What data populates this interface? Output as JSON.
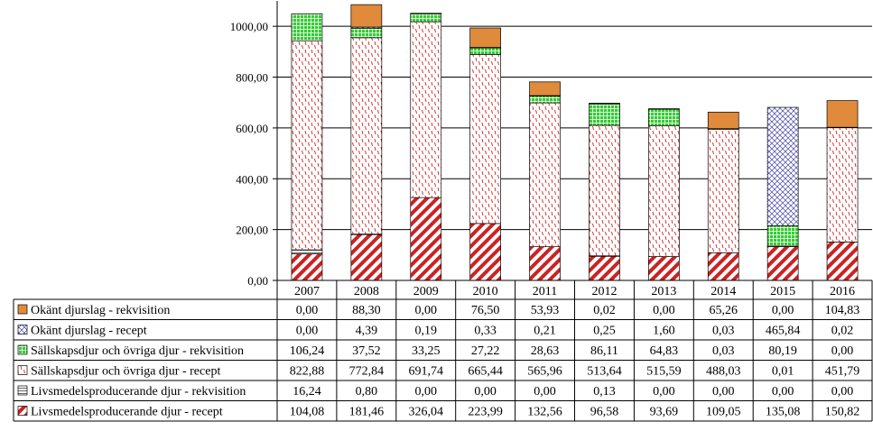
{
  "chart_data": {
    "type": "bar",
    "stacked": true,
    "categories": [
      "2007",
      "2008",
      "2009",
      "2010",
      "2011",
      "2012",
      "2013",
      "2014",
      "2015",
      "2016"
    ],
    "ylim": [
      0,
      1100
    ],
    "yticks": [
      0,
      200,
      400,
      600,
      800,
      1000
    ],
    "ytick_labels": [
      "0,00",
      "200,00",
      "400,00",
      "600,00",
      "800,00",
      "1000,00"
    ],
    "grid": true,
    "legend_position": "table-left",
    "series": [
      {
        "name": "Livsmedelsproducerande djur - recept",
        "color": "#cc2222",
        "pattern": "diag-red",
        "values": [
          104.08,
          181.46,
          326.04,
          223.99,
          132.56,
          96.58,
          93.69,
          109.05,
          135.08,
          150.82
        ],
        "labels": [
          "104,08",
          "181,46",
          "326,04",
          "223,99",
          "132,56",
          "96,58",
          "93,69",
          "109,05",
          "135,08",
          "150,82"
        ]
      },
      {
        "name": "Livsmedelsproducerande djur - rekvisition",
        "color": "#ffffff",
        "pattern": "hlines",
        "values": [
          16.24,
          0.8,
          0.0,
          0.0,
          0.0,
          0.13,
          0.0,
          0.0,
          0.0,
          0.0
        ],
        "labels": [
          "16,24",
          "0,80",
          "0,00",
          "0,00",
          "0,00",
          "0,13",
          "0,00",
          "0,00",
          "0,00",
          "0,00"
        ]
      },
      {
        "name": "Sällskapsdjur och övriga djur - recept",
        "color": "#cc2222",
        "pattern": "dash-red",
        "values": [
          822.88,
          772.84,
          691.74,
          665.44,
          565.96,
          513.64,
          515.59,
          488.03,
          0.01,
          451.79
        ],
        "labels": [
          "822,88",
          "772,84",
          "691,74",
          "665,44",
          "565,96",
          "513,64",
          "515,59",
          "488,03",
          "0,01",
          "451,79"
        ]
      },
      {
        "name": "Sällskapsdjur och övriga djur - rekvisition",
        "color": "#33bb33",
        "pattern": "grid-green",
        "values": [
          106.24,
          37.52,
          33.25,
          27.22,
          28.63,
          86.11,
          64.83,
          0.03,
          80.19,
          0.0
        ],
        "labels": [
          "106,24",
          "37,52",
          "33,25",
          "27,22",
          "28,63",
          "86,11",
          "64,83",
          "0,03",
          "80,19",
          "0,00"
        ]
      },
      {
        "name": "Okänt djurslag - recept",
        "color": "#4444aa",
        "pattern": "cross-blue",
        "values": [
          0.0,
          4.39,
          0.19,
          0.33,
          0.21,
          0.25,
          1.6,
          0.03,
          465.84,
          0.02
        ],
        "labels": [
          "0,00",
          "4,39",
          "0,19",
          "0,33",
          "0,21",
          "0,25",
          "1,60",
          "0,03",
          "465,84",
          "0,02"
        ]
      },
      {
        "name": "Okänt djurslag - rekvisition",
        "color": "#e08a3c",
        "pattern": "solid-orange",
        "values": [
          0.0,
          88.3,
          0.0,
          76.5,
          53.93,
          0.02,
          0.0,
          65.26,
          0.0,
          104.83
        ],
        "labels": [
          "0,00",
          "88,30",
          "0,00",
          "76,50",
          "53,93",
          "0,02",
          "0,00",
          "65,26",
          "0,00",
          "104,83"
        ]
      }
    ]
  }
}
